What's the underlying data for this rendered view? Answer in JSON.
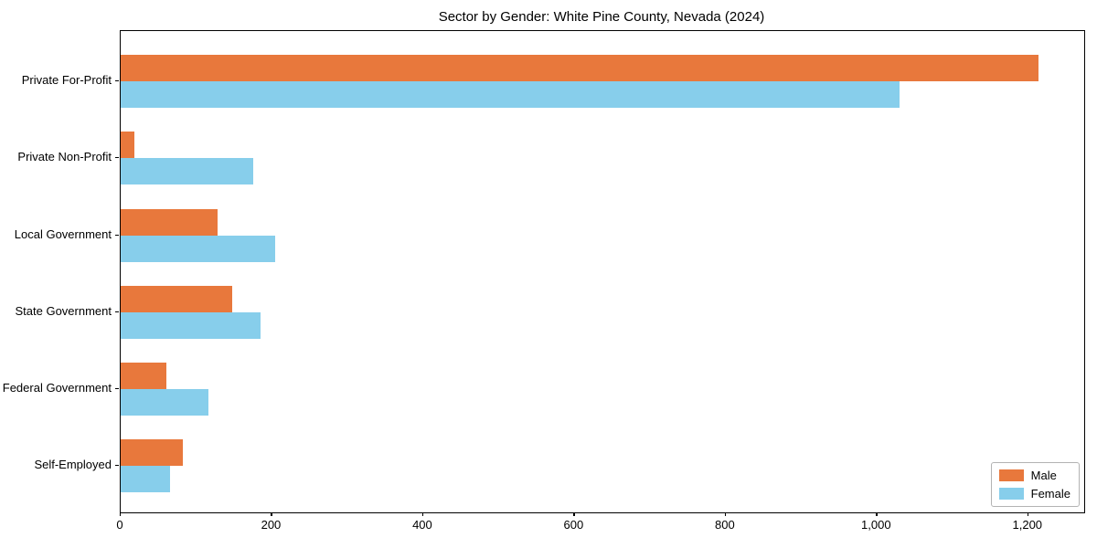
{
  "chart_data": {
    "type": "bar",
    "orientation": "horizontal",
    "title": "Sector by Gender: White Pine County, Nevada (2024)",
    "categories": [
      "Private For-Profit",
      "Private Non-Profit",
      "Local Government",
      "State Government",
      "Federal Government",
      "Self-Employed"
    ],
    "series": [
      {
        "name": "Male",
        "color": "#e8783c",
        "values": [
          1213,
          18,
          128,
          147,
          60,
          82
        ]
      },
      {
        "name": "Female",
        "color": "#87ceeb",
        "values": [
          1030,
          175,
          204,
          185,
          116,
          65
        ]
      }
    ],
    "xlabel": "",
    "ylabel": "",
    "xlim": [
      0,
      1274
    ],
    "xticks": [
      0,
      200,
      400,
      600,
      800,
      1000,
      1200
    ],
    "xtick_labels": [
      "0",
      "200",
      "400",
      "600",
      "800",
      "1,000",
      "1,200"
    ],
    "grid": false,
    "legend": {
      "position": "lower right"
    }
  },
  "colors": {
    "background": "#ffffff",
    "spine": "#000000",
    "text": "#000000",
    "legend_border": "#b3b3b3"
  }
}
